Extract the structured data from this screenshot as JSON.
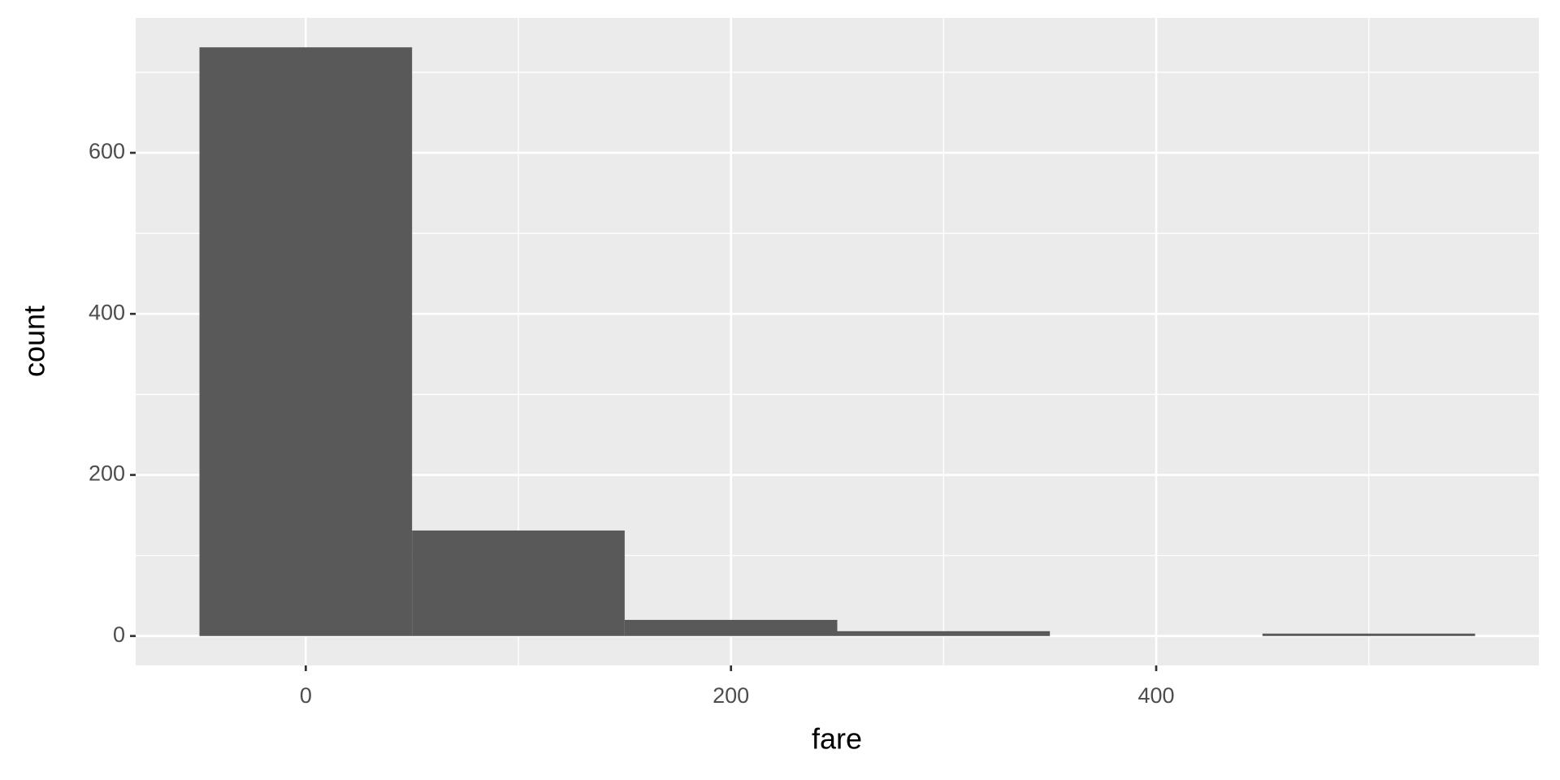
{
  "chart_data": {
    "type": "histogram",
    "bins": [
      -50,
      50,
      150,
      250,
      350,
      450,
      550
    ],
    "counts": [
      731,
      131,
      20,
      6,
      0,
      3
    ],
    "color": "#595959",
    "xlabel": "fare",
    "ylabel": "count",
    "xlim": [
      -80,
      580
    ],
    "xticks": [
      0,
      200,
      400
    ],
    "xminor": [
      100,
      300,
      500
    ],
    "ylim": [
      -36.55,
      767.55
    ],
    "yticks": [
      0,
      200,
      400,
      600
    ],
    "yminor": [
      100,
      300,
      500,
      700
    ],
    "grid": true
  }
}
